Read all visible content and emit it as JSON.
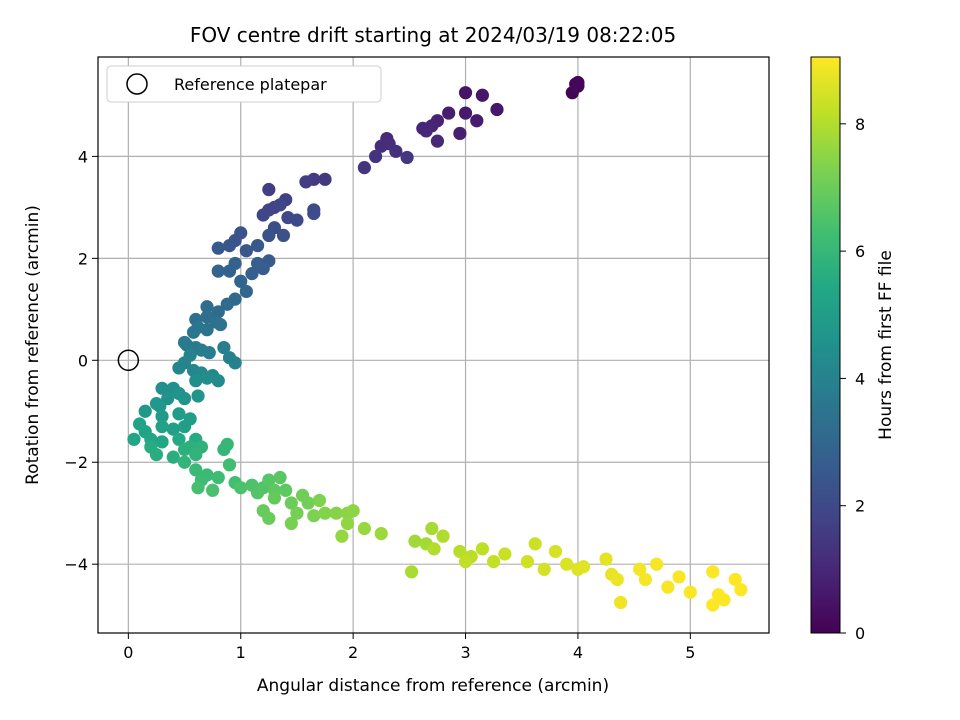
{
  "chart_data": {
    "type": "scatter",
    "title": "FOV centre drift starting at 2024/03/19 08:22:05",
    "xlabel": "Angular distance from reference (arcmin)",
    "ylabel": "Rotation from reference (arcmin)",
    "xlim": [
      -0.27,
      5.7
    ],
    "ylim": [
      -5.35,
      5.95
    ],
    "xticks": [
      0,
      1,
      2,
      3,
      4,
      5
    ],
    "yticks": [
      -4,
      -2,
      0,
      2,
      4
    ],
    "grid": true,
    "legend": {
      "placement": "top-left",
      "entries": [
        "Reference platepar"
      ]
    },
    "reference_point": {
      "x": 0,
      "y": 0,
      "label": "Reference platepar"
    },
    "colorbar": {
      "label": "Hours from first FF file",
      "colormap": "viridis",
      "range": [
        0,
        9.05
      ],
      "ticks": [
        0,
        2,
        4,
        6,
        8
      ]
    },
    "series": [
      {
        "note_values": "each point is [x, y, hours]",
        "points": [
          [
            3.95,
            5.25,
            0.1
          ],
          [
            3.98,
            5.42,
            0.1
          ],
          [
            4.0,
            5.45,
            0.12
          ],
          [
            4.0,
            5.38,
            0.15
          ],
          [
            3.0,
            5.25,
            0.5
          ],
          [
            3.15,
            5.2,
            0.55
          ],
          [
            3.28,
            4.92,
            0.6
          ],
          [
            3.0,
            4.85,
            0.65
          ],
          [
            3.1,
            4.7,
            0.7
          ],
          [
            2.85,
            4.85,
            0.75
          ],
          [
            2.95,
            4.45,
            0.8
          ],
          [
            2.75,
            4.7,
            0.85
          ],
          [
            2.7,
            4.6,
            0.9
          ],
          [
            2.62,
            4.55,
            0.95
          ],
          [
            2.65,
            4.5,
            1.0
          ],
          [
            2.75,
            4.3,
            1.05
          ],
          [
            2.3,
            4.35,
            1.1
          ],
          [
            2.25,
            4.2,
            1.15
          ],
          [
            2.32,
            4.25,
            1.2
          ],
          [
            2.38,
            4.1,
            1.25
          ],
          [
            2.2,
            4.0,
            1.3
          ],
          [
            2.1,
            3.78,
            1.35
          ],
          [
            2.48,
            3.98,
            1.4
          ],
          [
            1.75,
            3.55,
            1.5
          ],
          [
            1.65,
            3.55,
            1.55
          ],
          [
            1.58,
            3.5,
            1.6
          ],
          [
            1.25,
            3.35,
            1.65
          ],
          [
            1.4,
            3.15,
            1.7
          ],
          [
            1.3,
            3.0,
            1.75
          ],
          [
            1.25,
            2.95,
            1.8
          ],
          [
            1.35,
            3.05,
            1.85
          ],
          [
            1.2,
            2.85,
            1.9
          ],
          [
            1.42,
            2.8,
            1.95
          ],
          [
            1.5,
            2.75,
            2.0
          ],
          [
            1.65,
            2.95,
            2.05
          ],
          [
            1.65,
            2.88,
            2.1
          ],
          [
            1.3,
            2.6,
            2.15
          ],
          [
            1.38,
            2.45,
            2.2
          ],
          [
            1.25,
            2.45,
            2.25
          ],
          [
            1.0,
            2.5,
            2.3
          ],
          [
            0.95,
            2.35,
            2.35
          ],
          [
            0.9,
            2.25,
            2.4
          ],
          [
            1.05,
            2.15,
            2.45
          ],
          [
            1.15,
            2.25,
            2.5
          ],
          [
            0.8,
            2.2,
            2.55
          ],
          [
            1.25,
            1.95,
            2.6
          ],
          [
            1.2,
            1.8,
            2.65
          ],
          [
            1.15,
            1.9,
            2.7
          ],
          [
            1.1,
            1.7,
            2.75
          ],
          [
            0.95,
            1.9,
            2.8
          ],
          [
            0.9,
            1.75,
            2.85
          ],
          [
            0.8,
            1.75,
            2.9
          ],
          [
            1.0,
            1.55,
            2.95
          ],
          [
            1.05,
            1.35,
            3.0
          ],
          [
            0.95,
            1.2,
            3.05
          ],
          [
            0.88,
            1.1,
            3.1
          ],
          [
            0.8,
            0.95,
            3.15
          ],
          [
            0.7,
            1.05,
            3.2
          ],
          [
            0.7,
            0.85,
            3.25
          ],
          [
            0.6,
            0.8,
            3.3
          ],
          [
            0.78,
            0.75,
            3.35
          ],
          [
            0.82,
            0.7,
            3.4
          ],
          [
            0.7,
            0.6,
            3.45
          ],
          [
            0.58,
            0.55,
            3.5
          ],
          [
            0.62,
            0.65,
            3.55
          ],
          [
            0.52,
            0.3,
            3.6
          ],
          [
            0.5,
            0.35,
            3.65
          ],
          [
            0.6,
            0.25,
            3.7
          ],
          [
            0.65,
            0.2,
            3.75
          ],
          [
            0.72,
            0.15,
            3.8
          ],
          [
            0.85,
            0.25,
            3.85
          ],
          [
            0.9,
            0.05,
            3.9
          ],
          [
            0.95,
            -0.05,
            3.95
          ],
          [
            0.55,
            0.1,
            4.0
          ],
          [
            0.5,
            -0.05,
            4.05
          ],
          [
            0.45,
            -0.15,
            4.1
          ],
          [
            0.58,
            -0.2,
            4.15
          ],
          [
            0.65,
            -0.25,
            4.2
          ],
          [
            0.75,
            -0.3,
            4.25
          ],
          [
            0.8,
            -0.4,
            4.3
          ],
          [
            0.7,
            -0.35,
            4.35
          ],
          [
            0.6,
            -0.4,
            4.4
          ],
          [
            0.3,
            -0.55,
            4.45
          ],
          [
            0.4,
            -0.55,
            4.5
          ],
          [
            0.45,
            -0.65,
            4.55
          ],
          [
            0.35,
            -0.75,
            4.6
          ],
          [
            0.5,
            -0.75,
            4.65
          ],
          [
            0.62,
            -0.7,
            4.7
          ],
          [
            0.28,
            -0.9,
            4.75
          ],
          [
            0.25,
            -0.85,
            4.8
          ],
          [
            0.15,
            -1.0,
            4.85
          ],
          [
            0.3,
            -1.1,
            4.9
          ],
          [
            0.45,
            -1.05,
            4.95
          ],
          [
            0.55,
            -1.15,
            5.0
          ],
          [
            0.5,
            -1.3,
            5.05
          ],
          [
            0.4,
            -1.35,
            5.1
          ],
          [
            0.3,
            -1.3,
            5.15
          ],
          [
            0.1,
            -1.25,
            5.2
          ],
          [
            0.15,
            -1.4,
            5.25
          ],
          [
            0.05,
            -1.55,
            5.3
          ],
          [
            0.2,
            -1.55,
            5.35
          ],
          [
            0.3,
            -1.6,
            5.4
          ],
          [
            0.45,
            -1.55,
            5.45
          ],
          [
            0.6,
            -1.55,
            5.5
          ],
          [
            0.2,
            -1.7,
            5.55
          ],
          [
            0.25,
            -1.85,
            5.6
          ],
          [
            0.4,
            -1.9,
            5.65
          ],
          [
            0.5,
            -1.75,
            5.7
          ],
          [
            0.55,
            -1.7,
            5.75
          ],
          [
            0.65,
            -1.7,
            5.8
          ],
          [
            0.6,
            -1.85,
            5.85
          ],
          [
            0.5,
            -2.0,
            5.9
          ],
          [
            0.85,
            -1.75,
            5.95
          ],
          [
            0.88,
            -1.65,
            6.0
          ],
          [
            0.6,
            -2.15,
            6.05
          ],
          [
            0.7,
            -2.25,
            6.1
          ],
          [
            0.65,
            -2.35,
            6.15
          ],
          [
            0.8,
            -2.3,
            6.2
          ],
          [
            0.9,
            -2.05,
            6.25
          ],
          [
            0.95,
            -2.4,
            6.3
          ],
          [
            0.62,
            -2.5,
            6.35
          ],
          [
            0.75,
            -2.55,
            6.4
          ],
          [
            1.0,
            -2.5,
            6.45
          ],
          [
            1.1,
            -2.45,
            6.5
          ],
          [
            1.2,
            -2.5,
            6.55
          ],
          [
            1.15,
            -2.6,
            6.6
          ],
          [
            1.25,
            -2.35,
            6.65
          ],
          [
            1.35,
            -2.3,
            6.7
          ],
          [
            1.3,
            -2.55,
            6.75
          ],
          [
            1.4,
            -2.55,
            6.8
          ],
          [
            1.3,
            -2.7,
            6.85
          ],
          [
            1.2,
            -2.95,
            6.9
          ],
          [
            1.25,
            -3.1,
            6.95
          ],
          [
            1.45,
            -2.8,
            7.0
          ],
          [
            1.55,
            -2.65,
            7.05
          ],
          [
            1.6,
            -2.8,
            7.1
          ],
          [
            1.5,
            -3.0,
            7.15
          ],
          [
            1.45,
            -3.2,
            7.2
          ],
          [
            1.65,
            -3.05,
            7.25
          ],
          [
            1.7,
            -2.75,
            7.3
          ],
          [
            1.75,
            -3.0,
            7.35
          ],
          [
            1.85,
            -3.0,
            7.4
          ],
          [
            1.95,
            -3.0,
            7.45
          ],
          [
            2.0,
            -2.95,
            7.5
          ],
          [
            1.95,
            -3.2,
            7.55
          ],
          [
            1.9,
            -3.45,
            7.6
          ],
          [
            2.1,
            -3.3,
            7.65
          ],
          [
            2.25,
            -3.4,
            7.7
          ],
          [
            2.55,
            -3.55,
            7.75
          ],
          [
            2.65,
            -3.6,
            7.8
          ],
          [
            2.7,
            -3.3,
            7.85
          ],
          [
            2.52,
            -4.15,
            7.9
          ],
          [
            2.8,
            -3.45,
            7.95
          ],
          [
            2.72,
            -3.7,
            8.0
          ],
          [
            2.95,
            -3.75,
            8.05
          ],
          [
            3.05,
            -3.85,
            8.1
          ],
          [
            3.15,
            -3.7,
            8.15
          ],
          [
            3.0,
            -3.95,
            8.2
          ],
          [
            3.25,
            -3.95,
            8.25
          ],
          [
            3.35,
            -3.8,
            8.3
          ],
          [
            3.62,
            -3.6,
            8.35
          ],
          [
            3.55,
            -3.95,
            8.4
          ],
          [
            3.7,
            -4.1,
            8.45
          ],
          [
            3.8,
            -3.75,
            8.5
          ],
          [
            3.9,
            -4.0,
            8.55
          ],
          [
            4.0,
            -4.1,
            8.6
          ],
          [
            4.05,
            -4.05,
            8.65
          ],
          [
            4.25,
            -3.9,
            8.7
          ],
          [
            4.3,
            -4.2,
            8.75
          ],
          [
            4.35,
            -4.3,
            8.8
          ],
          [
            4.38,
            -4.75,
            8.85
          ],
          [
            4.55,
            -4.1,
            8.9
          ],
          [
            4.6,
            -4.3,
            8.92
          ],
          [
            4.7,
            -4.0,
            8.95
          ],
          [
            4.8,
            -4.45,
            8.97
          ],
          [
            4.9,
            -4.25,
            9.0
          ],
          [
            5.0,
            -4.55,
            9.0
          ],
          [
            5.2,
            -4.15,
            9.02
          ],
          [
            5.25,
            -4.6,
            9.03
          ],
          [
            5.3,
            -4.7,
            9.04
          ],
          [
            5.45,
            -4.5,
            9.05
          ],
          [
            5.4,
            -4.3,
            9.05
          ],
          [
            5.2,
            -4.8,
            9.05
          ]
        ]
      }
    ]
  }
}
